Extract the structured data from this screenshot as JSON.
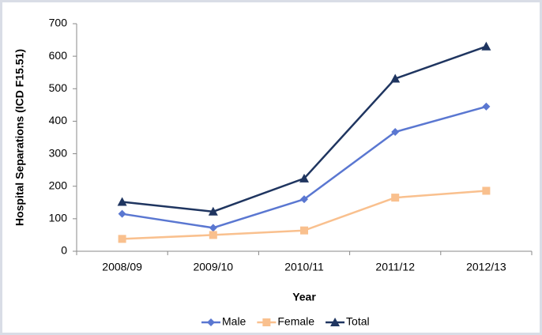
{
  "chart_data": {
    "type": "line",
    "categories": [
      "2008/09",
      "2009/10",
      "2010/11",
      "2011/12",
      "2012/13"
    ],
    "series": [
      {
        "name": "Male",
        "color": "#5a77d1",
        "marker": "diamond",
        "values": [
          115,
          72,
          160,
          367,
          445
        ]
      },
      {
        "name": "Female",
        "color": "#f9c08e",
        "marker": "square",
        "values": [
          38,
          50,
          64,
          165,
          186
        ]
      },
      {
        "name": "Total",
        "color": "#1f3560",
        "marker": "triangle",
        "values": [
          152,
          122,
          224,
          531,
          630
        ]
      }
    ],
    "y_axis_label": "Hospital Separations (ICD F15.51)",
    "x_axis_label": "Year",
    "ylim": [
      0,
      700
    ],
    "yticks": [
      0,
      100,
      200,
      300,
      400,
      500,
      600,
      700
    ],
    "grid": false,
    "legend": "bottom"
  }
}
